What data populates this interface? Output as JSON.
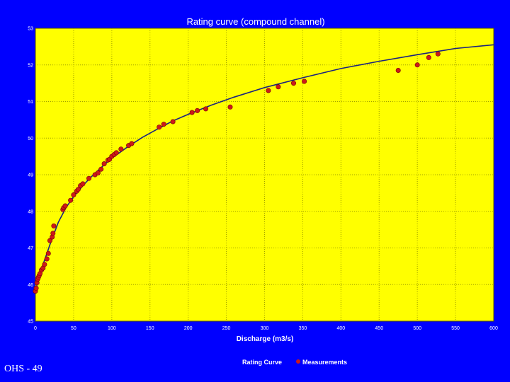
{
  "footer_text": "OHS - 49",
  "colors": {
    "background": "#0000ff",
    "plot_background": "#ffff00",
    "curve": "#1a237e",
    "marker": "#cc1a1a",
    "grid": "#a0a000"
  },
  "chart_data": {
    "type": "scatter",
    "title": "Rating curve (compound channel)",
    "xlabel": "Discharge (m3/s)",
    "ylabel": "",
    "xlim": [
      0,
      600
    ],
    "ylim": [
      45,
      53
    ],
    "x_ticks": [
      "0",
      "50",
      "100",
      "150",
      "200",
      "250",
      "300",
      "350",
      "400",
      "450",
      "500",
      "550",
      "600"
    ],
    "y_ticks": [
      "45",
      "46",
      "47",
      "48",
      "49",
      "50",
      "51",
      "52",
      "53"
    ],
    "grid": true,
    "legend_position": "bottom",
    "legend": [
      "Rating Curve",
      "Measurements"
    ],
    "series": [
      {
        "name": "Rating Curve",
        "kind": "line",
        "x": [
          0,
          2,
          5,
          10,
          15,
          20,
          30,
          40,
          50,
          60,
          70,
          80,
          90,
          100,
          120,
          140,
          160,
          180,
          200,
          230,
          260,
          300,
          350,
          400,
          450,
          500,
          550,
          600
        ],
        "y": [
          45.75,
          46.0,
          46.25,
          46.55,
          46.85,
          47.15,
          47.7,
          48.1,
          48.4,
          48.65,
          48.88,
          49.08,
          49.27,
          49.45,
          49.75,
          50.02,
          50.25,
          50.47,
          50.65,
          50.9,
          51.12,
          51.38,
          51.65,
          51.9,
          52.1,
          52.28,
          52.45,
          52.55
        ]
      },
      {
        "name": "Measurements",
        "kind": "scatter",
        "points": [
          [
            0,
            45.82
          ],
          [
            1,
            45.9
          ],
          [
            2,
            46.05
          ],
          [
            3,
            46.15
          ],
          [
            4,
            46.2
          ],
          [
            5,
            46.25
          ],
          [
            6,
            46.3
          ],
          [
            8,
            46.4
          ],
          [
            10,
            46.45
          ],
          [
            12,
            46.55
          ],
          [
            15,
            46.7
          ],
          [
            17,
            46.85
          ],
          [
            19,
            47.2
          ],
          [
            22,
            47.3
          ],
          [
            23,
            47.4
          ],
          [
            24,
            47.6
          ],
          [
            36,
            48.05
          ],
          [
            37,
            48.1
          ],
          [
            39,
            48.15
          ],
          [
            46,
            48.3
          ],
          [
            50,
            48.45
          ],
          [
            54,
            48.55
          ],
          [
            56,
            48.6
          ],
          [
            59,
            48.7
          ],
          [
            62,
            48.75
          ],
          [
            70,
            48.9
          ],
          [
            78,
            49.0
          ],
          [
            82,
            49.05
          ],
          [
            86,
            49.15
          ],
          [
            90,
            49.3
          ],
          [
            95,
            49.4
          ],
          [
            97,
            49.42
          ],
          [
            100,
            49.5
          ],
          [
            103,
            49.55
          ],
          [
            106,
            49.6
          ],
          [
            112,
            49.7
          ],
          [
            122,
            49.8
          ],
          [
            126,
            49.85
          ],
          [
            162,
            50.3
          ],
          [
            168,
            50.38
          ],
          [
            180,
            50.45
          ],
          [
            205,
            50.7
          ],
          [
            212,
            50.75
          ],
          [
            223,
            50.8
          ],
          [
            255,
            50.85
          ],
          [
            305,
            51.3
          ],
          [
            318,
            51.4
          ],
          [
            338,
            51.5
          ],
          [
            352,
            51.55
          ],
          [
            475,
            51.85
          ],
          [
            500,
            52.0
          ],
          [
            515,
            52.2
          ],
          [
            527,
            52.3
          ]
        ]
      }
    ]
  }
}
